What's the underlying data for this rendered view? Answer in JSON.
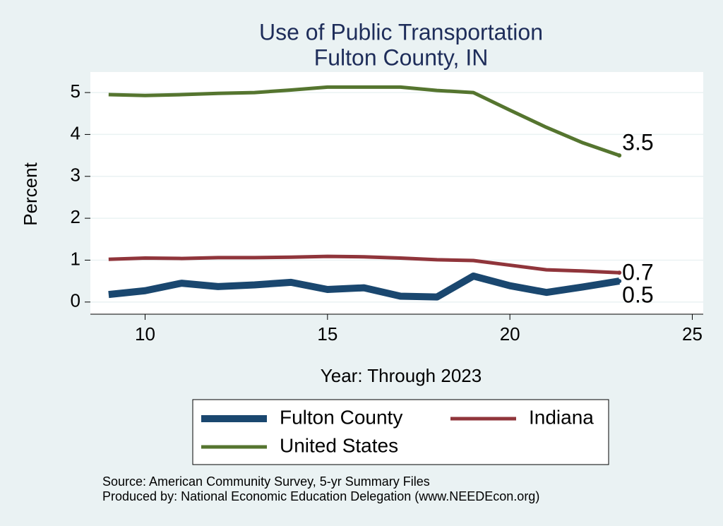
{
  "chart_data": {
    "type": "line",
    "title": "Use of Public Transportation",
    "subtitle": "Fulton County, IN",
    "x_label": "Year: Through 2023",
    "y_label": "Percent",
    "x": [
      9,
      10,
      11,
      12,
      13,
      14,
      15,
      16,
      17,
      18,
      19,
      20,
      21,
      22,
      23
    ],
    "series": [
      {
        "name": "Fulton County",
        "color": "#1a476f",
        "values": [
          0.18,
          0.27,
          0.45,
          0.37,
          0.41,
          0.47,
          0.3,
          0.34,
          0.14,
          0.12,
          0.62,
          0.39,
          0.23,
          0.36,
          0.5
        ],
        "value_labels": [
          null,
          null,
          null,
          null,
          null,
          null,
          null,
          null,
          null,
          null,
          null,
          null,
          null,
          null,
          "0.5"
        ]
      },
      {
        "name": "Indiana",
        "color": "#90353b",
        "values": [
          1.02,
          1.05,
          1.04,
          1.06,
          1.06,
          1.07,
          1.09,
          1.08,
          1.05,
          1.01,
          0.99,
          0.88,
          0.77,
          0.74,
          0.7
        ],
        "value_labels": [
          null,
          null,
          null,
          null,
          null,
          null,
          null,
          null,
          null,
          null,
          null,
          null,
          null,
          null,
          "0.7"
        ]
      },
      {
        "name": "United States",
        "color": "#55752f",
        "values": [
          4.95,
          4.93,
          4.95,
          4.98,
          5.0,
          5.06,
          5.13,
          5.13,
          5.13,
          5.05,
          5.0,
          4.58,
          4.17,
          3.8,
          3.5
        ],
        "value_labels": [
          null,
          null,
          null,
          null,
          null,
          null,
          null,
          null,
          null,
          null,
          null,
          null,
          null,
          null,
          "3.5"
        ]
      }
    ],
    "xlim": [
      8.5,
      25.3
    ],
    "xticks": [
      10,
      15,
      20,
      25
    ],
    "ylim": [
      -0.29,
      5.49
    ],
    "yticks": [
      0,
      1,
      2,
      3,
      4,
      5
    ],
    "grid": true,
    "notes": [
      "Source: American Community Survey, 5-yr Summary Files",
      "Produced by: National Economic Education Delegation (www.NEEDEcon.org)"
    ]
  }
}
